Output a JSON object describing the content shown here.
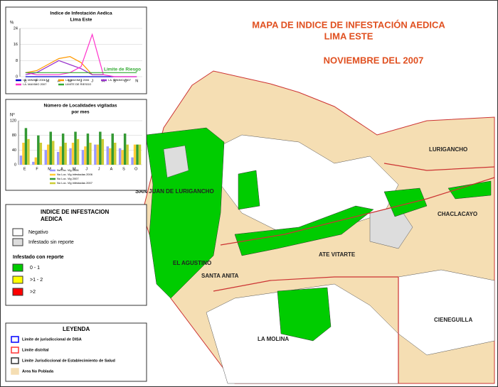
{
  "header": {
    "title": "MAPA DE INDICE DE INFESTACIÓN AEDICA",
    "subtitle": "LIMA ESTE",
    "date": "NOVIEMBRE DEL 2007"
  },
  "chart_data": [
    {
      "type": "line",
      "title": "Indice de Infestación Aedica",
      "subtitle": "Lima Este",
      "y_label": "%",
      "categories": [
        "E",
        "F",
        "M",
        "A",
        "M",
        "J",
        "J",
        "A",
        "S",
        "O",
        "N"
      ],
      "ylim": [
        0,
        24
      ],
      "yticks": [
        0,
        8,
        16,
        24
      ],
      "annotation": "Limite de Riesgo",
      "series": [
        {
          "name": "I.A. MINIMO 2006",
          "color": "#0000cc",
          "values": [
            0,
            0,
            0,
            0,
            0,
            0,
            0,
            0,
            0,
            0,
            0
          ]
        },
        {
          "name": "I.A. MAXIMO 2006",
          "color": "#ff9900",
          "values": [
            2,
            3,
            6,
            9,
            10,
            7,
            1,
            1,
            null,
            null,
            null
          ]
        },
        {
          "name": "I.A. MINIMO 2007",
          "color": "#9933cc",
          "values": [
            1,
            2,
            5,
            8,
            6,
            4,
            1,
            1,
            null,
            null,
            null
          ]
        },
        {
          "name": "I.A. MAXIMO 2007",
          "color": "#ff33cc",
          "values": [
            2,
            1,
            1,
            1,
            2,
            5,
            21,
            1,
            0,
            0,
            0
          ]
        },
        {
          "name": "LIMITE DE RIESGO",
          "color": "#33aa33",
          "values": [
            2,
            2,
            2,
            2,
            2,
            2,
            2,
            2,
            2,
            2,
            2
          ]
        }
      ]
    },
    {
      "type": "bar",
      "title": "Número de Localidades vigiladas",
      "subtitle": "por mes",
      "y_label": "Nº",
      "categories": [
        "E",
        "F",
        "M",
        "A",
        "M",
        "J",
        "J",
        "A",
        "S",
        "O"
      ],
      "ylim": [
        0,
        120
      ],
      "yticks": [
        0,
        40,
        80,
        120
      ],
      "series": [
        {
          "name": "No Loc. Vig 2006",
          "color": "#9999ff",
          "values": [
            25,
            8,
            40,
            35,
            45,
            40,
            55,
            50,
            45,
            20
          ]
        },
        {
          "name": "No Loc. Vig infestadas 2006",
          "color": "#ffcc33",
          "values": [
            60,
            20,
            55,
            50,
            60,
            50,
            55,
            45,
            40,
            55
          ]
        },
        {
          "name": "No Loc. Vig 2007",
          "color": "#339933",
          "values": [
            100,
            80,
            90,
            85,
            90,
            85,
            90,
            85,
            85,
            55
          ]
        },
        {
          "name": "No Loc. Vig infestadas 2007",
          "color": "#cccc33",
          "values": [
            70,
            60,
            65,
            60,
            70,
            60,
            70,
            60,
            55,
            55
          ]
        }
      ]
    }
  ],
  "legend_infestation": {
    "title": "INDICE DE INFESTACION",
    "title2": "AEDICA",
    "items": [
      {
        "label": "Negativo",
        "color": "#ffffff"
      },
      {
        "label": "Infestado sin reporte",
        "color": "#dddddd"
      }
    ],
    "subtitle": "Infestado con reporte",
    "levels": [
      {
        "label": "0 - 1",
        "color": "#00cc00"
      },
      {
        "label": ">1 - 2",
        "color": "#ffff00"
      },
      {
        "label": ">2",
        "color": "#ff0000"
      }
    ]
  },
  "legend_key": {
    "title": "LEYENDA",
    "items": [
      {
        "label": "Limite de jurisdiccional de DISA",
        "color": "#0000ff"
      },
      {
        "label": "Limite distrital",
        "color": "#ff3333"
      },
      {
        "label": "Limite Jurisdiccional de Establecimiento de Salud",
        "color": "#333333"
      },
      {
        "label": "Area No Poblada",
        "color": "#f5deb3"
      }
    ]
  },
  "districts": [
    "LURIGANCHO",
    "SAN JUAN DE LURIGANCHO",
    "CHACLACAYO",
    "ATE VITARTE",
    "EL AGUSTINO",
    "SANTA ANITA",
    "CIENEGUILLA",
    "LA MOLINA"
  ]
}
